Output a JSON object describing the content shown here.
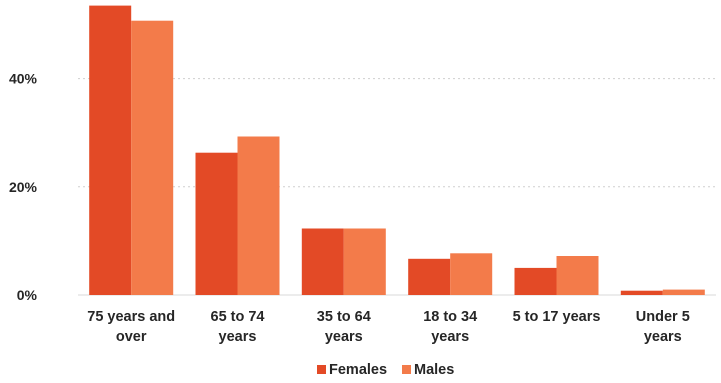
{
  "chart_data": {
    "type": "bar",
    "title": "",
    "xlabel": "",
    "ylabel": "",
    "ylim": [
      0,
      55
    ],
    "y_ticks": [
      0,
      20,
      40
    ],
    "y_tick_labels": [
      "0%",
      "20%",
      "40%"
    ],
    "y_unit": "%",
    "grid": "horizontal dotted",
    "legend_position": "bottom",
    "categories": [
      [
        "75 years and",
        "over"
      ],
      [
        "65 to 74",
        "years"
      ],
      [
        "35 to 64",
        "years"
      ],
      [
        "18 to 34",
        "years"
      ],
      [
        "5 to 17 years"
      ],
      [
        "Under 5",
        "years"
      ]
    ],
    "series": [
      {
        "name": "Females",
        "color": "#e34a26",
        "values": [
          53.5,
          26.3,
          12.3,
          6.7,
          5.0,
          0.8
        ]
      },
      {
        "name": "Males",
        "color": "#f37b4a",
        "values": [
          50.7,
          29.3,
          12.3,
          7.7,
          7.2,
          1.0
        ]
      }
    ]
  }
}
